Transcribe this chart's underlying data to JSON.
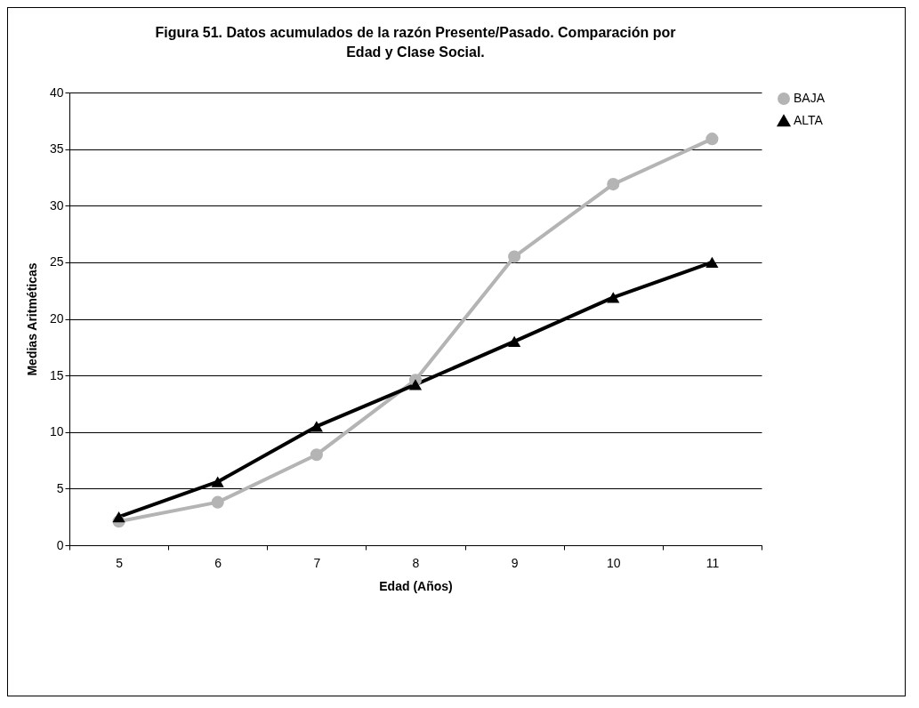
{
  "chart_data": {
    "type": "line",
    "title": "Figura 51. Datos acumulados de la razón Presente/Pasado. Comparación por Edad y Clase Social.",
    "xlabel": "Edad (Años)",
    "ylabel": "Medias Aritméticas",
    "categories": [
      "5",
      "6",
      "7",
      "8",
      "9",
      "10",
      "11"
    ],
    "series": [
      {
        "name": "BAJA",
        "color": "#b4b4b4",
        "marker": "circle",
        "values": [
          2.1,
          3.8,
          8.0,
          14.6,
          25.5,
          31.9,
          35.9
        ]
      },
      {
        "name": "ALTA",
        "color": "#000000",
        "marker": "triangle",
        "values": [
          2.5,
          5.6,
          10.5,
          14.2,
          18.0,
          21.9,
          25.0
        ]
      }
    ],
    "ylim": [
      0,
      40
    ],
    "yticks": [
      0,
      5,
      10,
      15,
      20,
      25,
      30,
      35,
      40
    ],
    "grid": "y",
    "legend": "right"
  }
}
